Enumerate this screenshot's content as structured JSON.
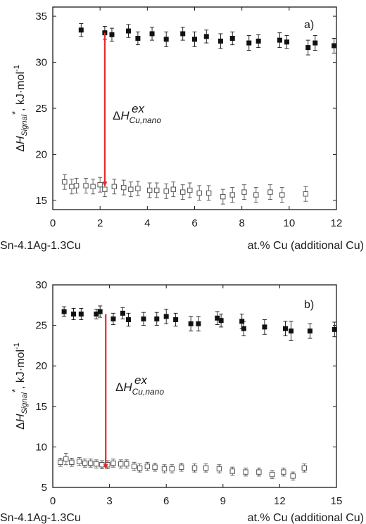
{
  "colors": {
    "arrow": "#e8262a",
    "axis": "#1a1a1a",
    "filled": "#111111",
    "open": "#555555"
  },
  "chart_data": [
    {
      "type": "scatter",
      "panel_label": "a)",
      "xlim": [
        0,
        12
      ],
      "ylim": [
        14,
        36
      ],
      "xticks": [
        0,
        2,
        4,
        6,
        8,
        10,
        12
      ],
      "yticks": [
        15,
        20,
        25,
        30,
        35
      ],
      "x_caption_left": "Sn-4.1Ag-1.3Cu",
      "x_caption_right": "at.% Cu (additional Cu)",
      "ylabel": {
        "delta": "Δ",
        "H": "H",
        "sub": "Signal",
        "star": "*",
        "unit": ", kJ·mol",
        "exp": "-1"
      },
      "annotation": {
        "delta": "Δ",
        "H": "H",
        "sub": "Cu,nano",
        "sup": "ex"
      },
      "arrow": {
        "x": 2.2,
        "from": 33.2,
        "to": 16.6
      },
      "series": [
        {
          "marker": "filled",
          "points": [
            {
              "x": 1.2,
              "y": 33.5,
              "err": 0.7
            },
            {
              "x": 2.2,
              "y": 33.2,
              "err": 0.7
            },
            {
              "x": 2.5,
              "y": 33.0,
              "err": 0.7
            },
            {
              "x": 3.2,
              "y": 33.4,
              "err": 0.7
            },
            {
              "x": 3.6,
              "y": 32.6,
              "err": 0.7
            },
            {
              "x": 4.2,
              "y": 33.1,
              "err": 0.7
            },
            {
              "x": 4.8,
              "y": 32.5,
              "err": 0.8
            },
            {
              "x": 5.5,
              "y": 33.1,
              "err": 0.7
            },
            {
              "x": 6.0,
              "y": 32.5,
              "err": 0.8
            },
            {
              "x": 6.5,
              "y": 32.8,
              "err": 0.7
            },
            {
              "x": 7.1,
              "y": 32.3,
              "err": 0.8
            },
            {
              "x": 7.6,
              "y": 32.6,
              "err": 0.7
            },
            {
              "x": 8.3,
              "y": 32.1,
              "err": 0.8
            },
            {
              "x": 8.7,
              "y": 32.3,
              "err": 0.7
            },
            {
              "x": 9.6,
              "y": 32.4,
              "err": 0.8
            },
            {
              "x": 9.9,
              "y": 32.2,
              "err": 0.7
            },
            {
              "x": 10.8,
              "y": 31.6,
              "err": 0.8
            },
            {
              "x": 11.1,
              "y": 32.1,
              "err": 0.8
            },
            {
              "x": 11.9,
              "y": 31.8,
              "err": 0.8
            }
          ]
        },
        {
          "marker": "open",
          "points": [
            {
              "x": 0.5,
              "y": 17.0,
              "err": 0.8
            },
            {
              "x": 0.8,
              "y": 16.5,
              "err": 0.8
            },
            {
              "x": 1.0,
              "y": 16.6,
              "err": 0.8
            },
            {
              "x": 1.4,
              "y": 16.6,
              "err": 0.8
            },
            {
              "x": 1.7,
              "y": 16.5,
              "err": 0.8
            },
            {
              "x": 2.0,
              "y": 16.7,
              "err": 0.8
            },
            {
              "x": 2.2,
              "y": 16.2,
              "err": 0.8
            },
            {
              "x": 2.6,
              "y": 16.5,
              "err": 0.8
            },
            {
              "x": 3.0,
              "y": 16.4,
              "err": 0.8
            },
            {
              "x": 3.3,
              "y": 16.2,
              "err": 0.8
            },
            {
              "x": 3.6,
              "y": 16.3,
              "err": 0.8
            },
            {
              "x": 4.1,
              "y": 16.1,
              "err": 0.8
            },
            {
              "x": 4.4,
              "y": 16.1,
              "err": 0.8
            },
            {
              "x": 4.8,
              "y": 16.0,
              "err": 0.8
            },
            {
              "x": 5.1,
              "y": 16.2,
              "err": 0.8
            },
            {
              "x": 5.5,
              "y": 15.9,
              "err": 0.8
            },
            {
              "x": 5.8,
              "y": 16.1,
              "err": 0.8
            },
            {
              "x": 6.2,
              "y": 15.8,
              "err": 0.8
            },
            {
              "x": 6.6,
              "y": 15.8,
              "err": 0.8
            },
            {
              "x": 7.2,
              "y": 15.4,
              "err": 0.8
            },
            {
              "x": 7.6,
              "y": 15.6,
              "err": 0.8
            },
            {
              "x": 8.1,
              "y": 15.9,
              "err": 0.8
            },
            {
              "x": 8.6,
              "y": 15.6,
              "err": 0.8
            },
            {
              "x": 9.2,
              "y": 15.9,
              "err": 0.8
            },
            {
              "x": 9.7,
              "y": 15.6,
              "err": 0.8
            },
            {
              "x": 10.7,
              "y": 15.7,
              "err": 0.8
            }
          ]
        }
      ]
    },
    {
      "type": "scatter",
      "panel_label": "b)",
      "xlim": [
        0,
        15
      ],
      "ylim": [
        5,
        30
      ],
      "xticks": [
        0,
        3,
        6,
        9,
        12,
        15
      ],
      "yticks": [
        5,
        10,
        15,
        20,
        25,
        30
      ],
      "x_caption_left": "Sn-4.1Ag-1.3Cu",
      "x_caption_right": "at.% Cu (additional Cu)",
      "ylabel": {
        "delta": "Δ",
        "H": "H",
        "sub": "Signal",
        "star": "*",
        "unit": ", kJ·mol",
        "exp": "-1"
      },
      "annotation": {
        "delta": "Δ",
        "H": "H",
        "sub": "Cu,nano",
        "sup": "ex"
      },
      "arrow": {
        "x": 2.8,
        "from": 26.4,
        "to": 7.4
      },
      "series": [
        {
          "marker": "filled",
          "points": [
            {
              "x": 0.6,
              "y": 26.7,
              "err": 0.6
            },
            {
              "x": 1.1,
              "y": 26.4,
              "err": 0.7
            },
            {
              "x": 1.5,
              "y": 26.4,
              "err": 0.7
            },
            {
              "x": 2.3,
              "y": 26.4,
              "err": 0.6
            },
            {
              "x": 2.5,
              "y": 26.7,
              "err": 0.7
            },
            {
              "x": 3.2,
              "y": 25.8,
              "err": 0.7
            },
            {
              "x": 3.7,
              "y": 26.5,
              "err": 0.7
            },
            {
              "x": 4.0,
              "y": 25.7,
              "err": 0.8
            },
            {
              "x": 4.8,
              "y": 25.8,
              "err": 0.8
            },
            {
              "x": 5.5,
              "y": 25.8,
              "err": 0.8
            },
            {
              "x": 6.0,
              "y": 26.1,
              "err": 0.9
            },
            {
              "x": 6.5,
              "y": 25.7,
              "err": 0.8
            },
            {
              "x": 7.3,
              "y": 25.2,
              "err": 0.9
            },
            {
              "x": 7.7,
              "y": 25.2,
              "err": 0.9
            },
            {
              "x": 8.7,
              "y": 25.9,
              "err": 0.8
            },
            {
              "x": 8.9,
              "y": 25.6,
              "err": 0.8
            },
            {
              "x": 10.0,
              "y": 25.5,
              "err": 0.9
            },
            {
              "x": 10.1,
              "y": 24.6,
              "err": 0.9
            },
            {
              "x": 11.2,
              "y": 24.8,
              "err": 0.9
            },
            {
              "x": 12.3,
              "y": 24.6,
              "err": 0.9
            },
            {
              "x": 12.6,
              "y": 24.3,
              "err": 1.2
            },
            {
              "x": 13.6,
              "y": 24.3,
              "err": 0.9
            },
            {
              "x": 14.9,
              "y": 24.5,
              "err": 0.9
            }
          ]
        },
        {
          "marker": "open",
          "points": [
            {
              "x": 0.4,
              "y": 8.1,
              "err": 0.5
            },
            {
              "x": 0.7,
              "y": 8.5,
              "err": 0.7
            },
            {
              "x": 1.0,
              "y": 8.1,
              "err": 0.5
            },
            {
              "x": 1.4,
              "y": 8.2,
              "err": 0.5
            },
            {
              "x": 1.7,
              "y": 8.0,
              "err": 0.5
            },
            {
              "x": 2.0,
              "y": 8.0,
              "err": 0.5
            },
            {
              "x": 2.3,
              "y": 7.9,
              "err": 0.5
            },
            {
              "x": 2.6,
              "y": 7.8,
              "err": 0.5
            },
            {
              "x": 2.9,
              "y": 7.8,
              "err": 0.5
            },
            {
              "x": 3.2,
              "y": 8.0,
              "err": 0.5
            },
            {
              "x": 3.6,
              "y": 7.9,
              "err": 0.5
            },
            {
              "x": 3.9,
              "y": 7.9,
              "err": 0.5
            },
            {
              "x": 4.3,
              "y": 7.6,
              "err": 0.5
            },
            {
              "x": 4.6,
              "y": 7.4,
              "err": 0.5
            },
            {
              "x": 5.0,
              "y": 7.6,
              "err": 0.5
            },
            {
              "x": 5.4,
              "y": 7.5,
              "err": 0.5
            },
            {
              "x": 5.9,
              "y": 7.3,
              "err": 0.5
            },
            {
              "x": 6.3,
              "y": 7.3,
              "err": 0.5
            },
            {
              "x": 6.8,
              "y": 7.5,
              "err": 0.5
            },
            {
              "x": 7.5,
              "y": 7.4,
              "err": 0.5
            },
            {
              "x": 8.1,
              "y": 7.4,
              "err": 0.5
            },
            {
              "x": 8.8,
              "y": 7.3,
              "err": 0.5
            },
            {
              "x": 9.5,
              "y": 7.0,
              "err": 0.5
            },
            {
              "x": 10.2,
              "y": 6.9,
              "err": 0.5
            },
            {
              "x": 10.9,
              "y": 6.9,
              "err": 0.5
            },
            {
              "x": 11.6,
              "y": 6.6,
              "err": 0.5
            },
            {
              "x": 12.2,
              "y": 6.9,
              "err": 0.5
            },
            {
              "x": 12.7,
              "y": 6.4,
              "err": 0.5
            },
            {
              "x": 13.3,
              "y": 7.4,
              "err": 0.5
            }
          ]
        }
      ]
    }
  ]
}
